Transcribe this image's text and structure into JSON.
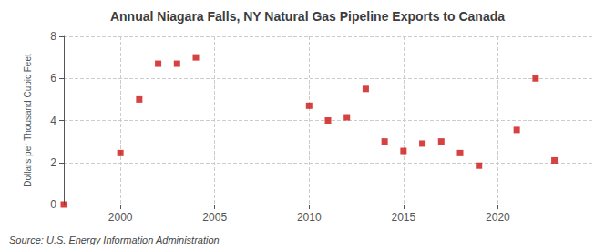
{
  "chart_data": {
    "type": "scatter",
    "title": "Annual Niagara Falls, NY Natural Gas Pipeline Exports to Canada",
    "ylabel": "Dollars per Thousand Cubic Feet",
    "annotations": [
      "Source: U.S. Energy Information Administration"
    ],
    "x": [
      1997,
      2000,
      2001,
      2002,
      2003,
      2004,
      2010,
      2011,
      2012,
      2013,
      2014,
      2015,
      2016,
      2017,
      2018,
      2019,
      2021,
      2022,
      2023
    ],
    "values": [
      0.0,
      2.45,
      5.0,
      6.7,
      6.7,
      7.0,
      4.7,
      4.0,
      4.15,
      5.5,
      3.0,
      2.55,
      2.9,
      3.0,
      2.45,
      1.85,
      3.55,
      6.0,
      2.1
    ],
    "color": "#cc1111",
    "marker": "square",
    "xlim": [
      1997,
      2025
    ],
    "ylim": [
      0,
      8
    ],
    "xticks": [
      2000,
      2005,
      2010,
      2015,
      2020
    ],
    "yticks": [
      0,
      2,
      4,
      6,
      8
    ],
    "grid": true
  }
}
